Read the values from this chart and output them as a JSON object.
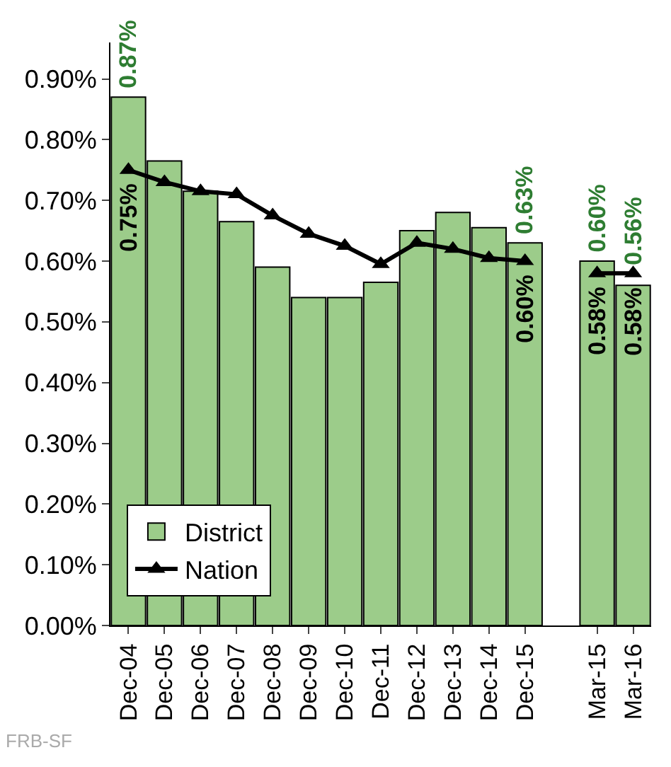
{
  "chart_data": {
    "type": "bar",
    "categories": [
      "Dec-04",
      "Dec-05",
      "Dec-06",
      "Dec-07",
      "Dec-08",
      "Dec-09",
      "Dec-10",
      "Dec-11",
      "Dec-12",
      "Dec-13",
      "Dec-14",
      "Dec-15",
      null,
      "Mar-15",
      "Mar-16"
    ],
    "series": [
      {
        "name": "District",
        "color": "#9ccc8a",
        "values": [
          0.87,
          0.765,
          0.715,
          0.665,
          0.59,
          0.54,
          0.54,
          0.565,
          0.65,
          0.68,
          0.655,
          0.63,
          null,
          0.6,
          0.56
        ],
        "value_labels": [
          "0.87%",
          null,
          null,
          null,
          null,
          null,
          null,
          null,
          null,
          null,
          null,
          "0.63%",
          null,
          "0.60%",
          "0.56%"
        ]
      },
      {
        "name": "Nation",
        "type": "line",
        "color": "#000000",
        "marker": "triangle",
        "values": [
          0.75,
          0.73,
          0.715,
          0.71,
          0.675,
          0.645,
          0.625,
          0.595,
          0.63,
          0.62,
          0.605,
          0.6,
          null,
          0.58,
          0.58
        ],
        "value_labels": [
          "0.75%",
          null,
          null,
          null,
          null,
          null,
          null,
          null,
          null,
          null,
          null,
          "0.60%",
          null,
          "0.58%",
          "0.58%"
        ]
      }
    ],
    "ylim": [
      0,
      0.96
    ],
    "yticks": [
      {
        "value": 0,
        "label": "0.00%"
      },
      {
        "value": 0.1,
        "label": "0.10%"
      },
      {
        "value": 0.2,
        "label": "0.20%"
      },
      {
        "value": 0.3,
        "label": "0.30%"
      },
      {
        "value": 0.4,
        "label": "0.40%"
      },
      {
        "value": 0.5,
        "label": "0.50%"
      },
      {
        "value": 0.6,
        "label": "0.60%"
      },
      {
        "value": 0.7,
        "label": "0.70%"
      },
      {
        "value": 0.8,
        "label": "0.80%"
      },
      {
        "value": 0.9,
        "label": "0.90%"
      }
    ],
    "legend": "bottom left",
    "annotations": [
      "FRB-SF"
    ]
  }
}
